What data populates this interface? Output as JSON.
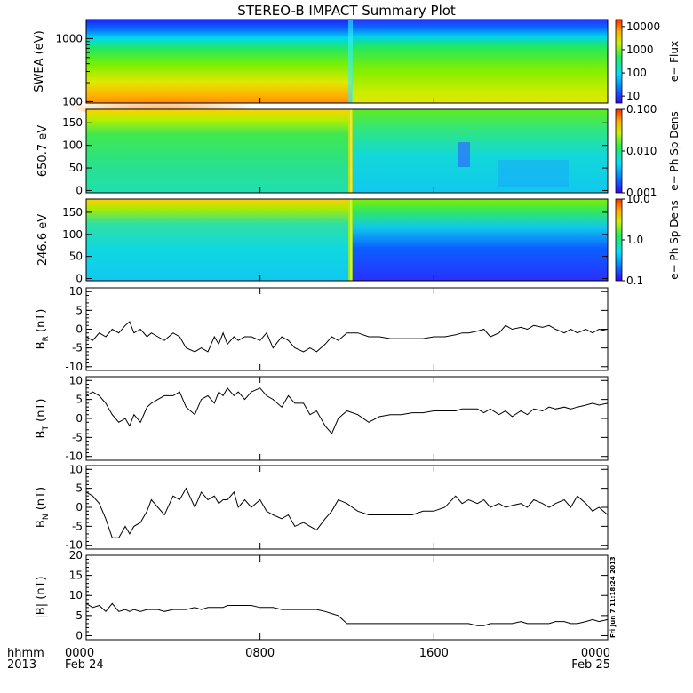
{
  "title": "STEREO-B IMPACT Summary Plot",
  "chart_data": [
    {
      "type": "heatmap",
      "name": "swea",
      "ylabel": "SWEA (eV)",
      "yscale": "log",
      "ylim": [
        95,
        2000
      ],
      "yticks": [
        "100",
        "1000"
      ],
      "colorbar": {
        "label": "e− Flux",
        "scale": "log",
        "range": [
          5,
          20000
        ],
        "ticks": [
          "10",
          "100",
          "1000",
          "10000"
        ]
      },
      "event_hour": 11.9
    },
    {
      "type": "heatmap",
      "name": "pad650",
      "ylabel": "650.7 eV",
      "ylim": [
        -5,
        180
      ],
      "yticks": [
        "0",
        "50",
        "100",
        "150"
      ],
      "colorbar": {
        "label": "e− Ph Sp Dens",
        "scale": "log",
        "range": [
          0.001,
          0.1
        ],
        "ticks": [
          "0.001",
          "0.010",
          "0.100"
        ]
      }
    },
    {
      "type": "heatmap",
      "name": "pad246",
      "ylabel": "246.6 eV",
      "ylim": [
        -5,
        180
      ],
      "yticks": [
        "0",
        "50",
        "100",
        "150"
      ],
      "colorbar": {
        "label": "e− Ph Sp Dens",
        "scale": "log",
        "range": [
          0.1,
          10
        ],
        "ticks": [
          "0.1",
          "1.0",
          "10.0"
        ]
      }
    },
    {
      "type": "line",
      "name": "br",
      "ylabel": "B_R (nT)",
      "ylabel_main": "B",
      "ylabel_sub": "R",
      "ylabel_unit": "(nT)",
      "ylim": [
        -11,
        11
      ],
      "yticks": [
        "-10",
        "-5",
        "0",
        "5",
        "10"
      ],
      "x": [
        0,
        0.3,
        0.6,
        0.9,
        1.2,
        1.5,
        1.8,
        2.0,
        2.2,
        2.5,
        2.8,
        3.0,
        3.3,
        3.6,
        4.0,
        4.3,
        4.6,
        5.0,
        5.3,
        5.6,
        5.9,
        6.1,
        6.3,
        6.5,
        6.8,
        7.0,
        7.3,
        7.6,
        8.0,
        8.3,
        8.6,
        9.0,
        9.3,
        9.6,
        10.0,
        10.3,
        10.6,
        11.0,
        11.3,
        11.6,
        12.0,
        12.5,
        13.0,
        13.5,
        14.0,
        14.5,
        15.0,
        15.5,
        16.0,
        16.5,
        17.0,
        17.3,
        17.6,
        18.0,
        18.3,
        18.6,
        19.0,
        19.3,
        19.6,
        20.0,
        20.3,
        20.6,
        21.0,
        21.3,
        21.6,
        22.0,
        22.3,
        22.6,
        23.0,
        23.3,
        23.6,
        24.0
      ],
      "values": [
        -2,
        -3,
        -1,
        -2,
        0,
        -1,
        1,
        2,
        -1,
        0,
        -2,
        -1,
        -2,
        -3,
        -1,
        -2,
        -5,
        -6,
        -5,
        -6,
        -2,
        -4,
        -1,
        -4,
        -2,
        -3,
        -2,
        -2,
        -3,
        -1,
        -5,
        -2,
        -3,
        -5,
        -6,
        -5,
        -6,
        -4,
        -2,
        -3,
        -1,
        -1,
        -2,
        -2,
        -2.5,
        -2.5,
        -2.5,
        -2.5,
        -2,
        -2,
        -1.5,
        -1,
        -1,
        -0.5,
        0,
        -2,
        -1,
        1,
        0,
        0.5,
        0,
        1,
        0.5,
        1,
        0,
        -1,
        0,
        -1,
        0,
        -1,
        0,
        -0.5
      ]
    },
    {
      "type": "line",
      "name": "bt",
      "ylabel": "B_T (nT)",
      "ylabel_main": "B",
      "ylabel_sub": "T",
      "ylabel_unit": "(nT)",
      "ylim": [
        -11,
        11
      ],
      "yticks": [
        "-10",
        "-5",
        "0",
        "5",
        "10"
      ],
      "x": [
        0,
        0.3,
        0.6,
        0.9,
        1.2,
        1.5,
        1.8,
        2.0,
        2.2,
        2.5,
        2.8,
        3.0,
        3.3,
        3.6,
        4.0,
        4.3,
        4.6,
        5.0,
        5.3,
        5.6,
        5.9,
        6.1,
        6.3,
        6.5,
        6.8,
        7.0,
        7.3,
        7.6,
        8.0,
        8.3,
        8.6,
        9.0,
        9.3,
        9.6,
        10.0,
        10.3,
        10.6,
        11.0,
        11.3,
        11.6,
        12.0,
        12.5,
        13.0,
        13.5,
        14.0,
        14.5,
        15.0,
        15.5,
        16.0,
        16.5,
        17.0,
        17.3,
        17.6,
        18.0,
        18.3,
        18.6,
        19.0,
        19.3,
        19.6,
        20.0,
        20.3,
        20.6,
        21.0,
        21.3,
        21.6,
        22.0,
        22.3,
        22.6,
        23.0,
        23.3,
        23.6,
        24.0
      ],
      "values": [
        6,
        7,
        6,
        4,
        1,
        -1,
        0,
        -2,
        1,
        -1,
        3,
        4,
        5,
        6,
        6,
        7,
        3,
        1,
        5,
        6,
        4,
        7,
        6,
        8,
        6,
        7,
        5,
        7,
        8,
        6,
        5,
        3,
        6,
        4,
        4,
        1,
        2,
        -2,
        -4,
        0,
        2,
        1,
        -1,
        0.5,
        1,
        1,
        1.5,
        1.5,
        2,
        2,
        2,
        2.5,
        2.5,
        2.5,
        1.5,
        2.5,
        1,
        2,
        0.5,
        2,
        1,
        2.5,
        2,
        3,
        2.5,
        3,
        2.5,
        3,
        3.5,
        4,
        3.5,
        4
      ]
    },
    {
      "type": "line",
      "name": "bn",
      "ylabel": "B_N (nT)",
      "ylabel_main": "B",
      "ylabel_sub": "N",
      "ylabel_unit": "(nT)",
      "ylim": [
        -11,
        11
      ],
      "yticks": [
        "-10",
        "-5",
        "0",
        "5",
        "10"
      ],
      "x": [
        0,
        0.3,
        0.6,
        0.9,
        1.2,
        1.5,
        1.8,
        2.0,
        2.2,
        2.5,
        2.8,
        3.0,
        3.3,
        3.6,
        4.0,
        4.3,
        4.6,
        5.0,
        5.3,
        5.6,
        5.9,
        6.1,
        6.3,
        6.5,
        6.8,
        7.0,
        7.3,
        7.6,
        8.0,
        8.3,
        8.6,
        9.0,
        9.3,
        9.6,
        10.0,
        10.3,
        10.6,
        11.0,
        11.3,
        11.6,
        12.0,
        12.5,
        13.0,
        13.5,
        14.0,
        14.5,
        15.0,
        15.5,
        16.0,
        16.5,
        17.0,
        17.3,
        17.6,
        18.0,
        18.3,
        18.6,
        19.0,
        19.3,
        19.6,
        20.0,
        20.3,
        20.6,
        21.0,
        21.3,
        21.6,
        22.0,
        22.3,
        22.6,
        23.0,
        23.3,
        23.6,
        24.0
      ],
      "values": [
        4,
        3,
        1,
        -3,
        -8,
        -8,
        -5,
        -7,
        -5,
        -4,
        -1,
        2,
        0,
        -2,
        3,
        2,
        5,
        0,
        4,
        2,
        3,
        1,
        2,
        2,
        4,
        0,
        2,
        0,
        2,
        -1,
        -2,
        -3,
        -2,
        -5,
        -4,
        -5,
        -6,
        -3,
        -1,
        2,
        1,
        -1,
        -2,
        -2,
        -2,
        -2,
        -2,
        -1,
        -1,
        0,
        3,
        1,
        2,
        1,
        2,
        0,
        1,
        0,
        0.5,
        1,
        0,
        2,
        1,
        0,
        1,
        2,
        0,
        3,
        1,
        -1,
        0,
        -2
      ]
    },
    {
      "type": "line",
      "name": "bmag",
      "ylabel": "|B| (nT)",
      "ylabel_main": "|B|",
      "ylabel_sub": "",
      "ylabel_unit": "(nT)",
      "ylim": [
        -1,
        20
      ],
      "yticks": [
        "0",
        "5",
        "10",
        "15",
        "20"
      ],
      "x": [
        0,
        0.3,
        0.6,
        0.9,
        1.2,
        1.5,
        1.8,
        2.0,
        2.2,
        2.5,
        2.8,
        3.0,
        3.3,
        3.6,
        4.0,
        4.3,
        4.6,
        5.0,
        5.3,
        5.6,
        5.9,
        6.1,
        6.3,
        6.5,
        6.8,
        7.0,
        7.3,
        7.6,
        8.0,
        8.3,
        8.6,
        9.0,
        9.3,
        9.6,
        10.0,
        10.3,
        10.6,
        11.0,
        11.3,
        11.6,
        12.0,
        12.5,
        13.0,
        13.5,
        14.0,
        14.5,
        15.0,
        15.5,
        16.0,
        16.5,
        17.0,
        17.3,
        17.6,
        18.0,
        18.3,
        18.6,
        19.0,
        19.3,
        19.6,
        20.0,
        20.3,
        20.6,
        21.0,
        21.3,
        21.6,
        22.0,
        22.3,
        22.6,
        23.0,
        23.3,
        23.6,
        24.0
      ],
      "values": [
        8,
        7,
        7.5,
        6,
        8,
        6,
        6.5,
        6,
        6.5,
        6,
        6.5,
        6.5,
        6.5,
        6,
        6.5,
        6.5,
        6.5,
        7,
        6.5,
        7,
        7,
        7,
        7,
        7.5,
        7.5,
        7.5,
        7.5,
        7.5,
        7,
        7,
        7,
        6.5,
        6.5,
        6.5,
        6.5,
        6.5,
        6.5,
        6,
        5.5,
        5,
        3,
        3,
        3,
        3,
        3,
        3,
        3,
        3,
        3,
        3,
        3,
        3,
        3,
        2.5,
        2.5,
        3,
        3,
        3,
        3,
        3.5,
        3,
        3,
        3,
        3,
        3.5,
        3.5,
        3,
        3,
        3.5,
        4,
        3.5,
        4
      ]
    }
  ],
  "time_axis": {
    "label_top": "hhmm",
    "label_bottom": "2013",
    "ticks": [
      {
        "hour": 0,
        "time": "0000",
        "date": "Feb 24"
      },
      {
        "hour": 8,
        "time": "0800",
        "date": ""
      },
      {
        "hour": 16,
        "time": "1600",
        "date": ""
      },
      {
        "hour": 24,
        "time": "0000",
        "date": "Feb 25"
      }
    ],
    "range_hours": [
      0,
      24
    ]
  },
  "stamp": "Fri Jun  7 11:18:24 2013"
}
